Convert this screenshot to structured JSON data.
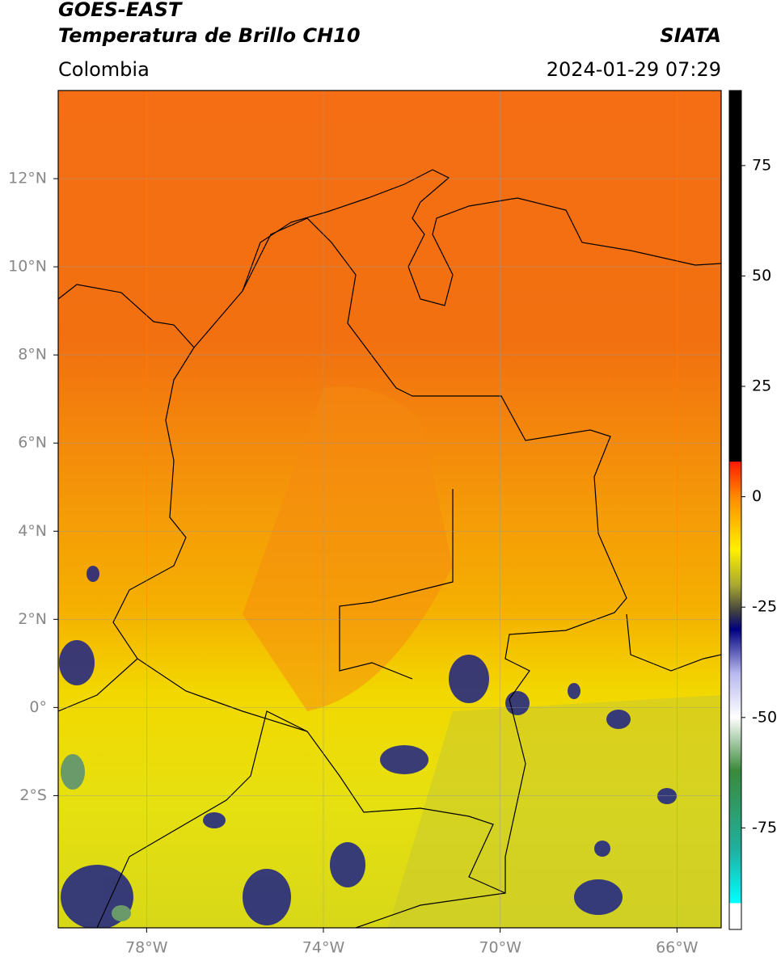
{
  "header": {
    "title": "GOES-EAST",
    "subtitle": "Temperatura de Brillo CH10",
    "source": "SIATA",
    "region": "Colombia",
    "datetime": "2024-01-29 07:29"
  },
  "map": {
    "xlim": [
      -80,
      -65
    ],
    "ylim": [
      -5,
      14
    ],
    "grid": true,
    "xticks": [
      {
        "value": -78,
        "label": "78°W"
      },
      {
        "value": -74,
        "label": "74°W"
      },
      {
        "value": -70,
        "label": "70°W"
      },
      {
        "value": -66,
        "label": "66°W"
      }
    ],
    "yticks": [
      {
        "value": 12,
        "label": "12°N"
      },
      {
        "value": 10,
        "label": "10°N"
      },
      {
        "value": 8,
        "label": "8°N"
      },
      {
        "value": 6,
        "label": "6°N"
      },
      {
        "value": 4,
        "label": "4°N"
      },
      {
        "value": 2,
        "label": "2°N"
      },
      {
        "value": 0,
        "label": "0°"
      },
      {
        "value": -2,
        "label": "2°S"
      }
    ]
  },
  "colorbar": {
    "ylim": [
      -98,
      92
    ],
    "yticks": [
      75,
      50,
      25,
      0,
      -25,
      -50,
      -75
    ],
    "stops": [
      {
        "value": 92,
        "color": "#000000"
      },
      {
        "value": 8,
        "color": "#000000"
      },
      {
        "value": 7.9,
        "color": "#ff1a00"
      },
      {
        "value": 0,
        "color": "#ff8a00"
      },
      {
        "value": -12,
        "color": "#fff000"
      },
      {
        "value": -20,
        "color": "#a8a830"
      },
      {
        "value": -26,
        "color": "#404040"
      },
      {
        "value": -30,
        "color": "#000080"
      },
      {
        "value": -40,
        "color": "#b8b8f0"
      },
      {
        "value": -50,
        "color": "#ffffff"
      },
      {
        "value": -62,
        "color": "#3a8a3a"
      },
      {
        "value": -80,
        "color": "#20b0a0"
      },
      {
        "value": -92,
        "color": "#00ffff"
      },
      {
        "value": -92.1,
        "color": "#ffffff"
      },
      {
        "value": -98,
        "color": "#ffffff"
      }
    ]
  }
}
